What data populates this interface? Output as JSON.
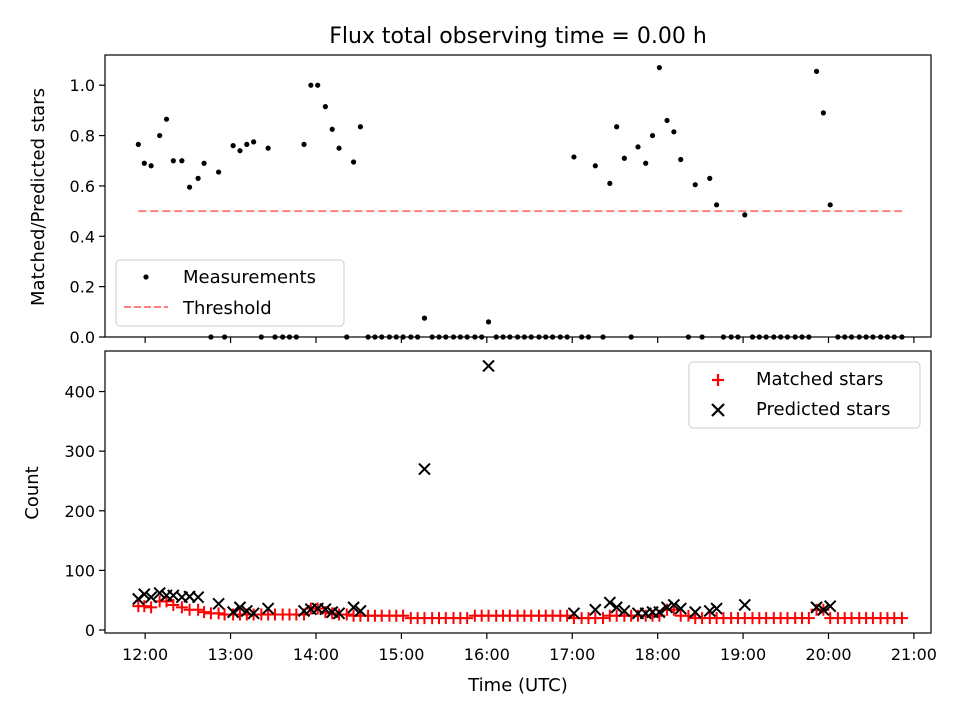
{
  "chart_data": [
    {
      "type": "scatter",
      "title": "Flux total observing time = 0.00 h",
      "xlabel": "",
      "ylabel": "Matched/Predicted stars",
      "xlim": [
        11.53,
        21.2
      ],
      "ylim": [
        0,
        1.12
      ],
      "yticks": [
        0.0,
        0.2,
        0.4,
        0.6,
        0.8,
        1.0
      ],
      "ytick_labels": [
        "0.0",
        "0.2",
        "0.4",
        "0.6",
        "0.8",
        "1.0"
      ],
      "legend": {
        "position": "lower-left",
        "entries": [
          "Measurements",
          "Threshold"
        ]
      },
      "series": [
        {
          "name": "Measurements",
          "kind": "points",
          "color": "#000000",
          "x": [
            11.92,
            11.99,
            12.07,
            12.17,
            12.25,
            12.33,
            12.43,
            12.52,
            12.62,
            12.69,
            12.77,
            12.86,
            12.93,
            13.03,
            13.11,
            13.19,
            13.27,
            13.36,
            13.44,
            13.52,
            13.61,
            13.69,
            13.77,
            13.86,
            13.94,
            14.02,
            14.11,
            14.19,
            14.27,
            14.36,
            14.44,
            14.52,
            14.61,
            14.69,
            14.77,
            14.86,
            14.94,
            15.02,
            15.11,
            15.19,
            15.27,
            15.36,
            15.44,
            15.52,
            15.61,
            15.69,
            15.77,
            15.86,
            15.94,
            16.02,
            16.11,
            16.19,
            16.27,
            16.36,
            16.44,
            16.52,
            16.61,
            16.69,
            16.77,
            16.86,
            16.94,
            17.02,
            17.11,
            17.19,
            17.27,
            17.36,
            17.44,
            17.52,
            17.61,
            17.69,
            17.77,
            17.86,
            17.94,
            18.02,
            18.11,
            18.19,
            18.27,
            18.36,
            18.44,
            18.52,
            18.61,
            18.69,
            18.77,
            18.86,
            18.94,
            19.02,
            19.11,
            19.19,
            19.27,
            19.36,
            19.44,
            19.52,
            19.61,
            19.69,
            19.77,
            19.86,
            19.94,
            20.02,
            20.11,
            20.19,
            20.27,
            20.36,
            20.44,
            20.52,
            20.61,
            20.69,
            20.77,
            20.86
          ],
          "y": [
            0.765,
            0.69,
            0.68,
            0.8,
            0.865,
            0.7,
            0.7,
            0.595,
            0.63,
            0.69,
            0.0,
            0.655,
            0.0,
            0.76,
            0.74,
            0.765,
            0.775,
            0.0,
            0.75,
            0.0,
            0.0,
            0.0,
            0.0,
            0.765,
            1.0,
            1.0,
            0.915,
            0.825,
            0.75,
            0.0,
            0.695,
            0.835,
            0.0,
            0.0,
            0.0,
            0.0,
            0.0,
            0.0,
            0.0,
            0.0,
            0.075,
            0.0,
            0.0,
            0.0,
            0.0,
            0.0,
            0.0,
            0.0,
            0.0,
            0.06,
            0.0,
            0.0,
            0.0,
            0.0,
            0.0,
            0.0,
            0.0,
            0.0,
            0.0,
            0.0,
            0.0,
            0.715,
            0.0,
            0.0,
            0.68,
            0.0,
            0.61,
            0.835,
            0.71,
            0.0,
            0.755,
            0.69,
            0.8,
            1.07,
            0.86,
            0.815,
            0.705,
            0.0,
            0.605,
            0.0,
            0.63,
            0.525,
            0.0,
            0.0,
            0.0,
            0.485,
            0.0,
            0.0,
            0.0,
            0.0,
            0.0,
            0.0,
            0.0,
            0.0,
            0.0,
            1.055,
            0.89,
            0.525,
            0.0,
            0.0,
            0.0,
            0.0,
            0.0,
            0.0,
            0.0,
            0.0,
            0.0,
            0.0
          ]
        },
        {
          "name": "Threshold",
          "kind": "dashed-line",
          "color": "#ff7f7f",
          "x": [
            11.92,
            20.86
          ],
          "y": [
            0.5,
            0.5
          ]
        }
      ]
    },
    {
      "type": "scatter",
      "title": "",
      "xlabel": "Time (UTC)",
      "ylabel": "Count",
      "xlim": [
        11.53,
        21.2
      ],
      "ylim": [
        -5,
        468
      ],
      "yticks": [
        0,
        100,
        200,
        300,
        400
      ],
      "ytick_labels": [
        "0",
        "100",
        "200",
        "300",
        "400"
      ],
      "xticks": [
        12,
        13,
        14,
        15,
        16,
        17,
        18,
        19,
        20,
        21
      ],
      "xtick_labels": [
        "12:00",
        "13:00",
        "14:00",
        "15:00",
        "16:00",
        "17:00",
        "18:00",
        "19:00",
        "20:00",
        "21:00"
      ],
      "legend": {
        "position": "upper-right",
        "entries": [
          "Matched stars",
          "Predicted stars"
        ]
      },
      "series": [
        {
          "name": "Matched stars",
          "kind": "plus",
          "color": "#ff0000",
          "x": [
            11.92,
            11.99,
            12.07,
            12.17,
            12.25,
            12.33,
            12.43,
            12.52,
            12.62,
            12.69,
            12.77,
            12.86,
            12.93,
            13.03,
            13.11,
            13.19,
            13.27,
            13.36,
            13.44,
            13.52,
            13.61,
            13.69,
            13.77,
            13.86,
            13.94,
            14.02,
            14.11,
            14.19,
            14.27,
            14.36,
            14.44,
            14.52,
            14.61,
            14.69,
            14.77,
            14.86,
            14.94,
            15.02,
            15.11,
            15.19,
            15.27,
            15.36,
            15.44,
            15.52,
            15.61,
            15.69,
            15.77,
            15.86,
            15.94,
            16.02,
            16.11,
            16.19,
            16.27,
            16.36,
            16.44,
            16.52,
            16.61,
            16.69,
            16.77,
            16.86,
            16.94,
            17.02,
            17.11,
            17.19,
            17.27,
            17.36,
            17.44,
            17.52,
            17.61,
            17.69,
            17.77,
            17.86,
            17.94,
            18.02,
            18.11,
            18.19,
            18.27,
            18.36,
            18.44,
            18.52,
            18.61,
            18.69,
            18.77,
            18.86,
            18.94,
            19.02,
            19.11,
            19.19,
            19.27,
            19.36,
            19.44,
            19.52,
            19.61,
            19.69,
            19.77,
            19.86,
            19.94,
            20.02,
            20.11,
            20.19,
            20.27,
            20.36,
            20.44,
            20.52,
            20.61,
            20.69,
            20.77,
            20.86
          ],
          "y": [
            40,
            40,
            38,
            48,
            48,
            42,
            38,
            34,
            34,
            30,
            28,
            28,
            26,
            26,
            26,
            26,
            26,
            26,
            26,
            26,
            26,
            26,
            26,
            26,
            36,
            36,
            30,
            28,
            26,
            26,
            24,
            24,
            24,
            24,
            24,
            24,
            24,
            24,
            20,
            20,
            20,
            20,
            20,
            20,
            20,
            20,
            20,
            24,
            24,
            24,
            24,
            24,
            24,
            24,
            24,
            24,
            24,
            24,
            24,
            24,
            24,
            20,
            20,
            20,
            20,
            20,
            24,
            24,
            24,
            24,
            24,
            24,
            24,
            24,
            34,
            34,
            24,
            24,
            20,
            20,
            20,
            20,
            20,
            20,
            20,
            20,
            20,
            20,
            20,
            20,
            20,
            20,
            20,
            20,
            20,
            34,
            34,
            20,
            20,
            20,
            20,
            20,
            20,
            20,
            20,
            20,
            20,
            20
          ]
        },
        {
          "name": "Predicted stars",
          "kind": "x",
          "color": "#000000",
          "x": [
            11.92,
            11.99,
            12.07,
            12.17,
            12.25,
            12.33,
            12.43,
            12.52,
            12.62,
            12.86,
            13.03,
            13.11,
            13.19,
            13.27,
            13.44,
            13.86,
            13.94,
            14.02,
            14.11,
            14.19,
            14.27,
            14.44,
            14.52,
            15.27,
            16.02,
            17.02,
            17.27,
            17.44,
            17.52,
            17.61,
            17.77,
            17.86,
            17.94,
            18.02,
            18.11,
            18.19,
            18.27,
            18.44,
            18.61,
            18.69,
            19.02,
            19.86,
            19.94,
            20.02
          ],
          "y": [
            52,
            60,
            55,
            62,
            58,
            58,
            55,
            56,
            55,
            44,
            30,
            38,
            32,
            28,
            36,
            32,
            35,
            36,
            35,
            30,
            28,
            38,
            32,
            270,
            443,
            28,
            34,
            46,
            38,
            32,
            28,
            28,
            30,
            30,
            38,
            42,
            36,
            30,
            32,
            36,
            42,
            38,
            34,
            40
          ]
        }
      ]
    }
  ]
}
